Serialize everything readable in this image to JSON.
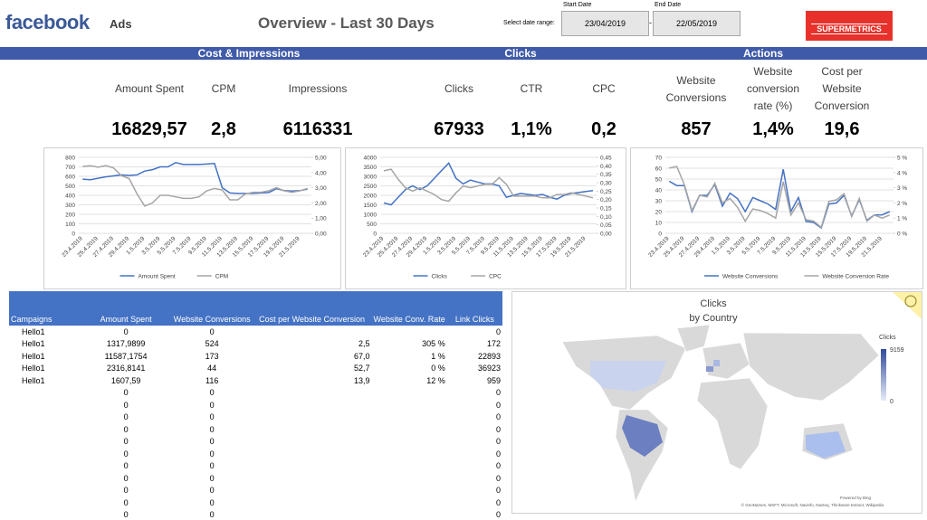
{
  "header": {
    "logo": "facebook",
    "section": "Ads",
    "title": "Overview - Last 30 Days",
    "date_range_label": "Select date range:",
    "start_label": "Start Date",
    "start_date": "23/04/2019",
    "separator": "-",
    "end_label": "End Date",
    "end_date": "22/05/2019",
    "brand": "SUPERMETRICS"
  },
  "sections": [
    "Cost & Impressions",
    "Clicks",
    "Actions"
  ],
  "kpis": [
    {
      "label": "Amount Spent",
      "value": "16829,57"
    },
    {
      "label": "CPM",
      "value": "2,8"
    },
    {
      "label": "Impressions",
      "value": "6116331"
    },
    {
      "label": "Clicks",
      "value": "67933"
    },
    {
      "label": "CTR",
      "value": "1,1%"
    },
    {
      "label": "CPC",
      "value": "0,2"
    },
    {
      "label": "Website Conversions",
      "value": "857"
    },
    {
      "label": "Website conversion rate (%)",
      "value": "1,4%"
    },
    {
      "label": "Cost per Website Conversion",
      "value": "19,6"
    }
  ],
  "chart_data": [
    {
      "type": "line",
      "categories": [
        "23.4.2019",
        null,
        "25.4.2019",
        null,
        "27.4.2019",
        null,
        "29.4.2019",
        null,
        "1.5.2019",
        null,
        "3.5.2019",
        null,
        "5.5.2019",
        null,
        "7.5.2019",
        null,
        "9.5.2019",
        null,
        "11.5.2019",
        null,
        "13.5.2019",
        null,
        "15.5.2019",
        null,
        "17.5.2019",
        null,
        "19.5.2019",
        null,
        "21.5.2019",
        null
      ],
      "series": [
        {
          "name": "Amount Spent",
          "color": "#4472c4",
          "axis": "y",
          "values": [
            570,
            565,
            580,
            595,
            605,
            615,
            610,
            615,
            655,
            670,
            700,
            700,
            745,
            725,
            725,
            725,
            730,
            735,
            480,
            425,
            420,
            420,
            420,
            425,
            430,
            470,
            450,
            445,
            450,
            465
          ]
        },
        {
          "name": "CPM",
          "color": "#a5a5a5",
          "axis": "y2",
          "values": [
            4.4,
            4.45,
            4.35,
            4.45,
            4.3,
            3.8,
            3.6,
            2.6,
            1.8,
            2.0,
            2.5,
            2.5,
            2.4,
            2.3,
            2.3,
            2.4,
            2.8,
            2.95,
            2.85,
            2.2,
            2.2,
            2.6,
            2.7,
            2.7,
            2.8,
            3.0,
            2.8,
            2.7,
            2.8,
            2.95
          ]
        }
      ],
      "ylim": [
        0,
        800
      ],
      "yticks": [
        0,
        100,
        200,
        300,
        400,
        500,
        600,
        700,
        800
      ],
      "y2lim": [
        0,
        5
      ],
      "y2ticks": [
        {
          "value": 0,
          "label": "0,00"
        },
        {
          "value": 1,
          "label": "1,00"
        },
        {
          "value": 2,
          "label": "2,00"
        },
        {
          "value": 3,
          "label": "3,00"
        },
        {
          "value": 4,
          "label": "4,00"
        },
        {
          "value": 5,
          "label": "5,00"
        }
      ],
      "grid": true
    },
    {
      "type": "line",
      "categories": [
        "23.4.2019",
        null,
        "25.4.2019",
        null,
        "27.4.2019",
        null,
        "29.4.2019",
        null,
        "1.5.2019",
        null,
        "3.5.2019",
        null,
        "5.5.2019",
        null,
        "7.5.2019",
        null,
        "9.5.2019",
        null,
        "11.5.2019",
        null,
        "13.5.2019",
        null,
        "15.5.2019",
        null,
        "17.5.2019",
        null,
        "19.5.2019",
        null,
        "21.5.2019",
        null
      ],
      "series": [
        {
          "name": "Clicks",
          "color": "#4472c4",
          "axis": "y",
          "values": [
            1600,
            1500,
            1900,
            2300,
            2500,
            2300,
            2500,
            2900,
            3300,
            3700,
            2900,
            2600,
            2800,
            2700,
            2600,
            2600,
            2500,
            1900,
            2000,
            2100,
            2050,
            2000,
            2050,
            1900,
            1800,
            2000,
            2100,
            2150,
            2200,
            2250
          ]
        },
        {
          "name": "CPC",
          "color": "#a5a5a5",
          "axis": "y2",
          "values": [
            0.37,
            0.38,
            0.32,
            0.27,
            0.25,
            0.27,
            0.25,
            0.23,
            0.2,
            0.19,
            0.24,
            0.28,
            0.27,
            0.28,
            0.29,
            0.29,
            0.33,
            0.29,
            0.22,
            0.22,
            0.22,
            0.22,
            0.21,
            0.21,
            0.23,
            0.23,
            0.24,
            0.23,
            0.22,
            0.21
          ]
        }
      ],
      "ylim": [
        0,
        4000
      ],
      "yticks": [
        0,
        500,
        1000,
        1500,
        2000,
        2500,
        3000,
        3500,
        4000
      ],
      "y2lim": [
        0,
        0.45
      ],
      "y2ticks": [
        {
          "value": 0,
          "label": "0,00"
        },
        {
          "value": 0.05,
          "label": "0,05"
        },
        {
          "value": 0.1,
          "label": "0,10"
        },
        {
          "value": 0.15,
          "label": "0,15"
        },
        {
          "value": 0.2,
          "label": "0,20"
        },
        {
          "value": 0.25,
          "label": "0,25"
        },
        {
          "value": 0.3,
          "label": "0,30"
        },
        {
          "value": 0.35,
          "label": "0,35"
        },
        {
          "value": 0.4,
          "label": "0,40"
        },
        {
          "value": 0.45,
          "label": "0,45"
        }
      ],
      "grid": true
    },
    {
      "type": "line",
      "categories": [
        "23.4.2019",
        null,
        "25.4.2019",
        null,
        "27.4.2019",
        null,
        "29.4.2019",
        null,
        "1.5.2019",
        null,
        "3.5.2019",
        null,
        "5.5.2019",
        null,
        "7.5.2019",
        null,
        "9.5.2019",
        null,
        "11.5.2019",
        null,
        "13.5.2019",
        null,
        "15.5.2019",
        null,
        "17.5.2019",
        null,
        "19.5.2019",
        null,
        "21.5.2019",
        null
      ],
      "series": [
        {
          "name": "Website Conversions",
          "color": "#4472c4",
          "axis": "y",
          "values": [
            48,
            44,
            44,
            20,
            35,
            35,
            45,
            25,
            37,
            32,
            20,
            33,
            30,
            27,
            22,
            59,
            20,
            33,
            11,
            10,
            5,
            27,
            28,
            35,
            16,
            31,
            12,
            17,
            17,
            20
          ]
        },
        {
          "name": "Website Conversion Rate",
          "color": "#a5a5a5",
          "axis": "y2",
          "values": [
            4.3,
            4.4,
            3.2,
            1.5,
            2.5,
            2.4,
            3.3,
            2.0,
            2.3,
            1.7,
            0.8,
            1.6,
            1.5,
            1.3,
            1.0,
            3.4,
            1.2,
            2.0,
            0.9,
            0.8,
            0.4,
            2.1,
            2.2,
            2.6,
            1.1,
            2.3,
            0.8,
            1.2,
            1.0,
            1.2
          ]
        }
      ],
      "ylim": [
        0,
        70
      ],
      "yticks": [
        0,
        10,
        20,
        30,
        40,
        50,
        60,
        70
      ],
      "y2lim": [
        0,
        5
      ],
      "y2ticks": [
        {
          "value": 0,
          "label": "0 %"
        },
        {
          "value": 1,
          "label": "1 %"
        },
        {
          "value": 2,
          "label": "2 %"
        },
        {
          "value": 3,
          "label": "3 %"
        },
        {
          "value": 4,
          "label": "4 %"
        },
        {
          "value": 5,
          "label": "5 %"
        }
      ],
      "grid": true
    }
  ],
  "table": {
    "columns": [
      "Campaigns",
      "Amount Spent",
      "Website Conversions",
      "Cost per Website Conversion",
      "Website Conv. Rate",
      "Link Clicks"
    ],
    "rows": [
      [
        "Hello1",
        "0",
        "0",
        null,
        null,
        "0"
      ],
      [
        "Hello1",
        "1317,9899",
        "524",
        "2,5",
        "305 %",
        "172"
      ],
      [
        "Hello1",
        "11587,1754",
        "173",
        "67,0",
        "1 %",
        "22893"
      ],
      [
        "Hello1",
        "2316,8141",
        "44",
        "52,7",
        "0 %",
        "36923"
      ],
      [
        "Hello1",
        "1607,59",
        "116",
        "13,9",
        "12 %",
        "959"
      ],
      [
        null,
        "0",
        "0",
        null,
        null,
        "0"
      ],
      [
        null,
        "0",
        "0",
        null,
        null,
        "0"
      ],
      [
        null,
        "0",
        "0",
        null,
        null,
        "0"
      ],
      [
        null,
        "0",
        "0",
        null,
        null,
        "0"
      ],
      [
        null,
        "0",
        "0",
        null,
        null,
        "0"
      ],
      [
        null,
        "0",
        "0",
        null,
        null,
        "0"
      ],
      [
        null,
        "0",
        "0",
        null,
        null,
        "0"
      ],
      [
        null,
        "0",
        "0",
        null,
        null,
        "0"
      ],
      [
        null,
        "0",
        "0",
        null,
        null,
        "0"
      ],
      [
        null,
        "0",
        "0",
        null,
        null,
        "0"
      ],
      [
        null,
        "0",
        "0",
        null,
        null,
        "0"
      ]
    ]
  },
  "map": {
    "title": "Clicks",
    "subtitle": "by Country",
    "legend_title": "Clicks",
    "legend_max": "9159",
    "legend_min": "0",
    "powered": "Powered by Bing",
    "attribution": "© GeoNames, MSFT, Microsoft, Navinfo, Navteq, Thinkware Extract, Wikipedia"
  }
}
